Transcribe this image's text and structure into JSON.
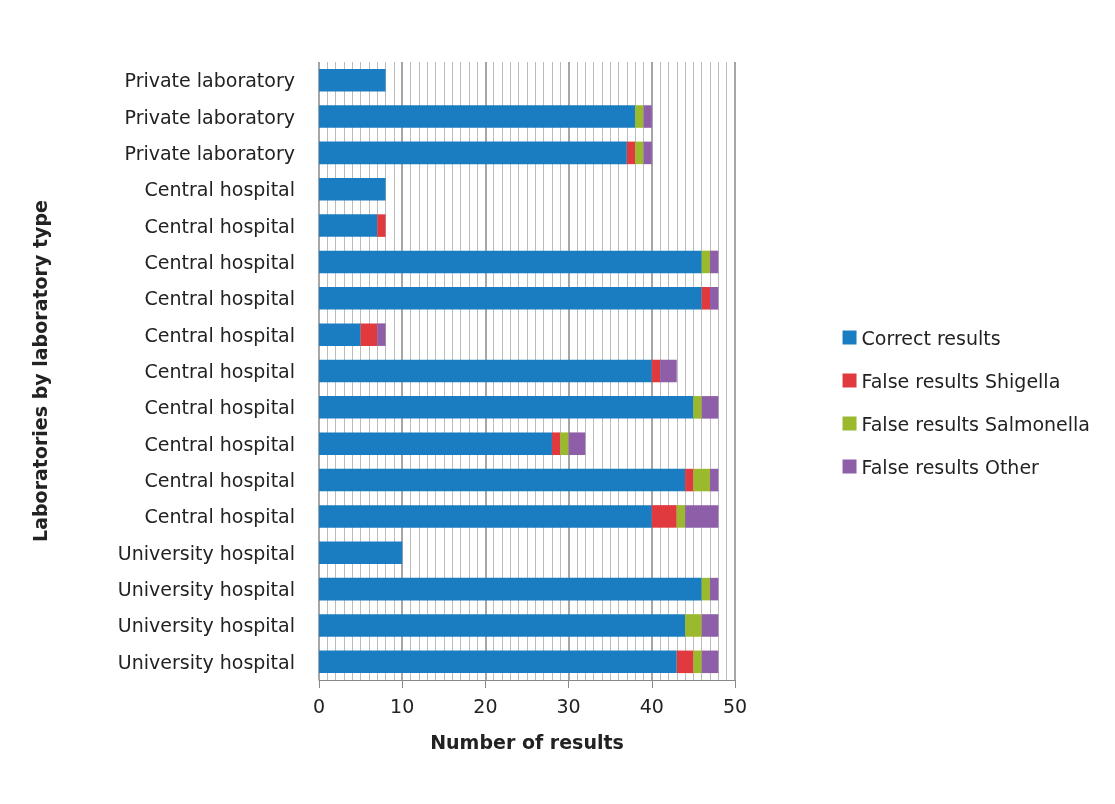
{
  "chart_data": {
    "type": "bar",
    "orientation": "horizontal",
    "stacked": true,
    "xlabel": "Number of results",
    "ylabel": "Laboratories by laboratory type",
    "categories": [
      "Private laboratory",
      "Private laboratory",
      "Private laboratory",
      "Central hospital",
      "Central hospital",
      "Central hospital",
      "Central hospital",
      "Central hospital",
      "Central hospital",
      "Central hospital",
      "Central hospital",
      "Central hospital",
      "Central hospital",
      "University hospital",
      "University hospital",
      "University hospital",
      "University hospital"
    ],
    "series": [
      {
        "name": "Correct results",
        "color": "#1a7cc1",
        "values": [
          8,
          38,
          37,
          8,
          7,
          46,
          46,
          5,
          40,
          45,
          28,
          44,
          40,
          10,
          46,
          44,
          43
        ]
      },
      {
        "name": "False results Shigella",
        "color": "#e03a3e",
        "values": [
          0,
          0,
          1,
          0,
          1,
          0,
          1,
          2,
          1,
          0,
          1,
          1,
          3,
          0,
          0,
          0,
          2
        ]
      },
      {
        "name": "False results Salmonella",
        "color": "#9ab92d",
        "values": [
          0,
          1,
          1,
          0,
          0,
          1,
          0,
          0,
          0,
          1,
          1,
          2,
          1,
          0,
          1,
          2,
          1
        ]
      },
      {
        "name": "False results Other",
        "color": "#8e5fa8",
        "values": [
          0,
          1,
          1,
          0,
          0,
          1,
          1,
          1,
          2,
          2,
          2,
          1,
          4,
          0,
          1,
          2,
          2
        ]
      }
    ],
    "xlim": [
      0,
      50
    ],
    "xticks": [
      0,
      10,
      20,
      30,
      40,
      50
    ],
    "grid": "x",
    "legend": "right"
  }
}
